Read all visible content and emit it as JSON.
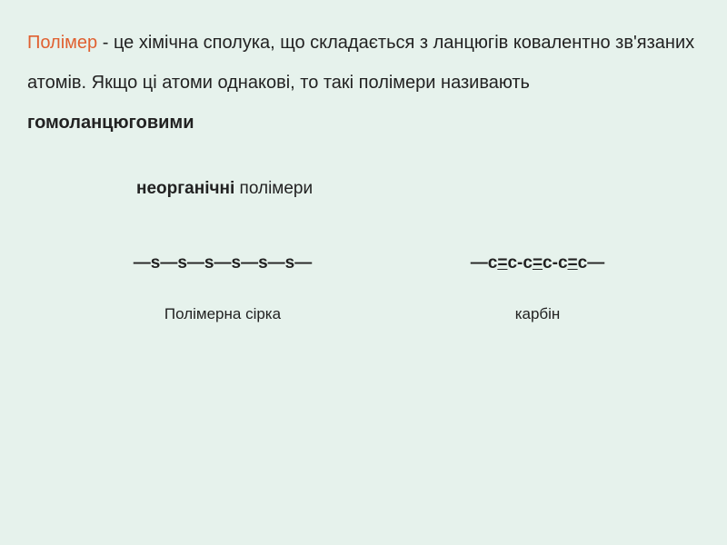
{
  "colors": {
    "background": "#e6f2ec",
    "term": "#e06030",
    "text": "#222222"
  },
  "typography": {
    "body_fontsize": 20,
    "subtitle_fontsize": 19,
    "formula_fontsize": 19,
    "label_fontsize": 17,
    "line_height": 2.2
  },
  "definition": {
    "term": "Полімер",
    "text_part1": " - це хімічна сполука, що складається з ланцюгів ковалентно зв'язаних атомів. Якщо ці атоми однакові, то такі полімери називають ",
    "bold_term": "гомоланцюговими"
  },
  "subtitle": {
    "bold": "неорганічні",
    "rest": " полімери"
  },
  "examples": {
    "left": {
      "formula": "—s—s—s—s—s—s—",
      "label": "Полімерна сірка"
    },
    "right": {
      "formula_parts": [
        "—с",
        "с-с",
        "с-с",
        "с—"
      ],
      "label": "карбін"
    }
  }
}
